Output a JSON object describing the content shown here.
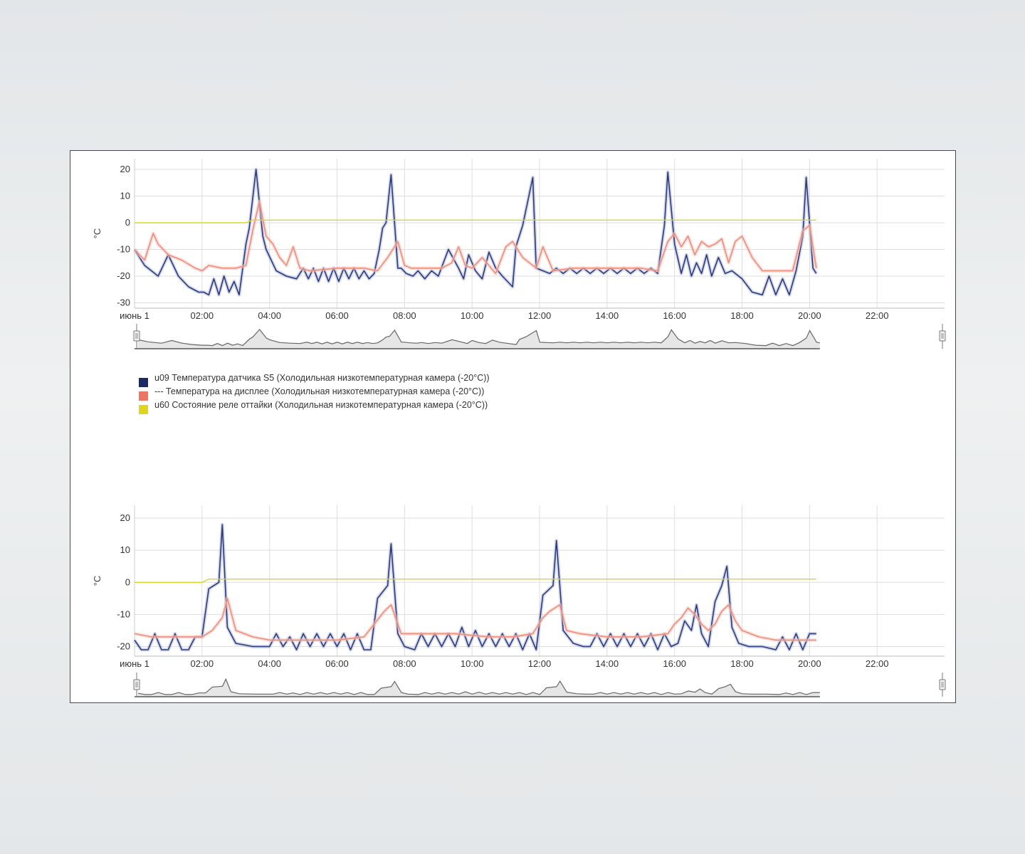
{
  "colors": {
    "sensor_s5": "#2c3a78",
    "sensor_s5_band": "#aeb8dc",
    "display": "#ef8c7a",
    "display_band": "#f7c9c0",
    "defrost": "#d8d828",
    "navigator": "#666666",
    "grid": "#dddddd"
  },
  "legend": [
    {
      "label": "u09 Температура датчика S5 (Холодильная низкотемпературная камера (-20°C))",
      "color": "#1c2a66"
    },
    {
      "label": "--- Температура на дисплее (Холодильная низкотемпературная камера (-20°C))",
      "color": "#ef7462"
    },
    {
      "label": "u60 Состояние реле оттайки (Холодильная низкотемпературная камера (-20°C))",
      "color": "#e0d51a"
    }
  ],
  "chart_data": [
    {
      "type": "line",
      "ylabel": "°C",
      "ylim": [
        -32,
        24
      ],
      "yticks": [
        -30,
        -20,
        -10,
        0,
        10,
        20
      ],
      "xlim": [
        0,
        24
      ],
      "xticks": [
        0,
        2,
        4,
        6,
        8,
        10,
        12,
        14,
        16,
        18,
        20,
        22
      ],
      "xtick_labels": [
        "июнь 1",
        "02:00",
        "04:00",
        "06:00",
        "08:00",
        "10:00",
        "12:00",
        "14:00",
        "16:00",
        "18:00",
        "20:00",
        "22:00"
      ],
      "grid": true,
      "series": [
        {
          "name": "u09 Температура датчика S5 (Холодильная низкотемпературная камера (-20°C))",
          "x": [
            0,
            0.3,
            0.5,
            0.7,
            1.0,
            1.3,
            1.6,
            1.9,
            2.05,
            2.2,
            2.35,
            2.5,
            2.65,
            2.8,
            2.95,
            3.1,
            3.3,
            3.4,
            3.6,
            3.8,
            3.9,
            4.2,
            4.5,
            4.8,
            5.0,
            5.15,
            5.3,
            5.45,
            5.6,
            5.75,
            5.9,
            6.05,
            6.2,
            6.35,
            6.5,
            6.65,
            6.8,
            6.95,
            7.1,
            7.25,
            7.35,
            7.45,
            7.6,
            7.8,
            7.9,
            8.05,
            8.25,
            8.4,
            8.6,
            8.8,
            9.0,
            9.3,
            9.6,
            9.75,
            9.9,
            10.1,
            10.3,
            10.5,
            10.7,
            10.9,
            11.2,
            11.3,
            11.5,
            11.8,
            11.9,
            12.1,
            12.3,
            12.5,
            12.7,
            12.9,
            13.1,
            13.3,
            13.5,
            13.7,
            13.9,
            14.1,
            14.3,
            14.5,
            14.7,
            14.9,
            15.1,
            15.3,
            15.5,
            15.7,
            15.8,
            16.0,
            16.2,
            16.35,
            16.5,
            16.65,
            16.8,
            16.95,
            17.1,
            17.3,
            17.5,
            17.7,
            18.0,
            18.3,
            18.6,
            18.8,
            19.0,
            19.2,
            19.4,
            19.6,
            19.8,
            19.9,
            20.1,
            20.2
          ],
          "y": [
            -10,
            -16,
            -18,
            -20,
            -12,
            -20,
            -24,
            -26,
            -26,
            -27,
            -21,
            -27,
            -20,
            -26,
            -22,
            -27,
            -8,
            -2,
            20,
            -5,
            -10,
            -18,
            -20,
            -21,
            -17,
            -21,
            -17,
            -22,
            -17,
            -22,
            -17,
            -22,
            -17,
            -21,
            -17,
            -21,
            -18,
            -21,
            -19,
            -10,
            -2,
            0,
            18,
            -17,
            -17,
            -19,
            -20,
            -18,
            -21,
            -18,
            -20,
            -10,
            -17,
            -21,
            -12,
            -18,
            -21,
            -11,
            -17,
            -20,
            -24,
            -9,
            -1,
            17,
            -17,
            -18,
            -19,
            -17,
            -19,
            -17,
            -19,
            -17,
            -19,
            -17,
            -19,
            -17,
            -19,
            -17,
            -19,
            -17,
            -19,
            -17,
            -19,
            -1,
            19,
            -8,
            -19,
            -12,
            -20,
            -15,
            -19,
            -12,
            -20,
            -13,
            -19,
            -18,
            -21,
            -26,
            -27,
            -20,
            -27,
            -21,
            -27,
            -18,
            -5,
            17,
            -17,
            -19
          ]
        },
        {
          "name": "--- Температура на дисплее (Холодильная низкотемпературная камера (-20°C))",
          "x": [
            0,
            0.3,
            0.55,
            0.7,
            0.85,
            1.0,
            1.4,
            1.8,
            2.0,
            2.2,
            2.6,
            3.0,
            3.3,
            3.5,
            3.7,
            3.9,
            4.1,
            4.3,
            4.5,
            4.7,
            4.9,
            5.2,
            6.0,
            6.8,
            7.2,
            7.5,
            7.8,
            8.0,
            8.2,
            8.5,
            8.8,
            9.1,
            9.4,
            9.6,
            9.8,
            10.0,
            10.3,
            10.5,
            10.7,
            11.0,
            11.2,
            11.5,
            11.9,
            12.1,
            12.4,
            13.0,
            13.5,
            14.0,
            14.5,
            15.0,
            15.5,
            15.8,
            16.0,
            16.2,
            16.4,
            16.6,
            16.8,
            17.0,
            17.2,
            17.4,
            17.6,
            17.8,
            18.0,
            18.3,
            18.6,
            19.0,
            19.2,
            19.5,
            19.8,
            20.0,
            20.2
          ],
          "y": [
            -10,
            -14,
            -4,
            -8,
            -10,
            -12,
            -14,
            -17,
            -18,
            -16,
            -17,
            -17,
            -16,
            -3,
            8,
            -5,
            -8,
            -13,
            -16,
            -9,
            -17,
            -18,
            -17,
            -17,
            -18,
            -13,
            -7,
            -16,
            -17,
            -17,
            -17,
            -17,
            -15,
            -9,
            -16,
            -17,
            -13,
            -16,
            -19,
            -9,
            -7,
            -13,
            -17,
            -9,
            -18,
            -17,
            -17,
            -17,
            -17,
            -17,
            -18,
            -7,
            -4,
            -9,
            -5,
            -12,
            -7,
            -9,
            -8,
            -6,
            -15,
            -7,
            -5,
            -13,
            -18,
            -18,
            -18,
            -18,
            -3,
            -1,
            -17
          ]
        },
        {
          "name": "u60 Состояние реле оттайки (Холодильная низкотемпературная камера (-20°C))",
          "x": [
            0,
            3.3,
            3.5,
            7.3,
            7.5,
            11.1,
            11.3,
            15.2,
            15.4,
            19.4,
            19.6,
            20.2
          ],
          "y": [
            0,
            0,
            1,
            1,
            1,
            1,
            1,
            1,
            1,
            1,
            1,
            1
          ]
        }
      ]
    },
    {
      "type": "line",
      "ylabel": "°C",
      "ylim": [
        -23,
        24
      ],
      "yticks": [
        -20,
        -10,
        0,
        10,
        20
      ],
      "xlim": [
        0,
        24
      ],
      "xticks": [
        0,
        2,
        4,
        6,
        8,
        10,
        12,
        14,
        16,
        18,
        20,
        22
      ],
      "xtick_labels": [
        "июнь 1",
        "02:00",
        "04:00",
        "06:00",
        "08:00",
        "10:00",
        "12:00",
        "14:00",
        "16:00",
        "18:00",
        "20:00",
        "22:00"
      ],
      "grid": true,
      "series": [
        {
          "name": "u09 Температура датчика S5 (Холодильная низкотемпературная камера (-20°C))",
          "x": [
            0,
            0.2,
            0.4,
            0.6,
            0.8,
            1.0,
            1.2,
            1.4,
            1.6,
            1.8,
            2.0,
            2.2,
            2.5,
            2.6,
            2.75,
            3.0,
            3.5,
            4.0,
            4.2,
            4.4,
            4.6,
            4.8,
            5.0,
            5.2,
            5.4,
            5.6,
            5.8,
            6.0,
            6.2,
            6.4,
            6.6,
            6.8,
            7.0,
            7.2,
            7.5,
            7.6,
            7.8,
            8.0,
            8.3,
            8.5,
            8.7,
            8.9,
            9.1,
            9.3,
            9.5,
            9.7,
            9.9,
            10.1,
            10.3,
            10.5,
            10.7,
            10.9,
            11.1,
            11.3,
            11.5,
            11.7,
            11.9,
            12.1,
            12.4,
            12.5,
            12.7,
            13.0,
            13.3,
            13.5,
            13.7,
            13.9,
            14.1,
            14.3,
            14.5,
            14.7,
            14.9,
            15.1,
            15.3,
            15.5,
            15.7,
            15.9,
            16.1,
            16.3,
            16.5,
            16.65,
            16.8,
            17.0,
            17.2,
            17.4,
            17.55,
            17.7,
            17.9,
            18.2,
            18.6,
            19.0,
            19.2,
            19.4,
            19.6,
            19.8,
            20.0,
            20.2
          ],
          "y": [
            -18,
            -21,
            -21,
            -16,
            -21,
            -21,
            -16,
            -21,
            -21,
            -17,
            -17,
            -2,
            0,
            18,
            -14,
            -19,
            -20,
            -20,
            -16,
            -20,
            -17,
            -21,
            -16,
            -20,
            -16,
            -20,
            -16,
            -20,
            -16,
            -21,
            -16,
            -21,
            -21,
            -5,
            -1,
            12,
            -16,
            -20,
            -21,
            -16,
            -20,
            -16,
            -20,
            -16,
            -20,
            -14,
            -20,
            -15,
            -20,
            -16,
            -20,
            -16,
            -20,
            -16,
            -21,
            -16,
            -21,
            -4,
            -1,
            13,
            -15,
            -19,
            -20,
            -20,
            -16,
            -20,
            -16,
            -20,
            -16,
            -20,
            -16,
            -20,
            -16,
            -21,
            -16,
            -20,
            -19,
            -12,
            -15,
            -7,
            -16,
            -20,
            -6,
            -1,
            5,
            -14,
            -19,
            -20,
            -20,
            -21,
            -17,
            -21,
            -16,
            -21,
            -16,
            -16
          ]
        },
        {
          "name": "--- Температура на дисплее (Холодильная низкотемпературная камера (-20°C))",
          "x": [
            0,
            0.5,
            1.0,
            1.5,
            2.0,
            2.3,
            2.6,
            2.75,
            3.0,
            3.5,
            4.0,
            5.0,
            6.0,
            6.8,
            7.1,
            7.4,
            7.6,
            7.9,
            8.5,
            9.5,
            10.5,
            11.2,
            11.8,
            12.1,
            12.3,
            12.6,
            12.8,
            13.2,
            14.0,
            15.0,
            15.8,
            16.0,
            16.2,
            16.4,
            16.6,
            16.8,
            17.0,
            17.2,
            17.4,
            17.6,
            17.8,
            18.0,
            18.5,
            19.0,
            19.5,
            20.0,
            20.2
          ],
          "y": [
            -16,
            -17,
            -17,
            -17,
            -17,
            -15,
            -11,
            -5,
            -15,
            -17,
            -18,
            -18,
            -18,
            -17,
            -13,
            -9,
            -7,
            -16,
            -16,
            -16,
            -17,
            -17,
            -16,
            -11,
            -9,
            -7,
            -15,
            -16,
            -17,
            -17,
            -16,
            -13,
            -11,
            -8,
            -10,
            -13,
            -15,
            -13,
            -9,
            -7,
            -12,
            -15,
            -17,
            -18,
            -18,
            -18,
            -18
          ]
        },
        {
          "name": "u60 Состояние реле оттайки (Холодильная низкотемпературная камера (-20°C))",
          "x": [
            0,
            2.0,
            2.2,
            7.1,
            7.3,
            12.2,
            12.4,
            17.0,
            17.2,
            20.2
          ],
          "y": [
            0,
            0,
            1,
            1,
            1,
            1,
            1,
            1,
            1,
            1
          ]
        }
      ]
    }
  ]
}
